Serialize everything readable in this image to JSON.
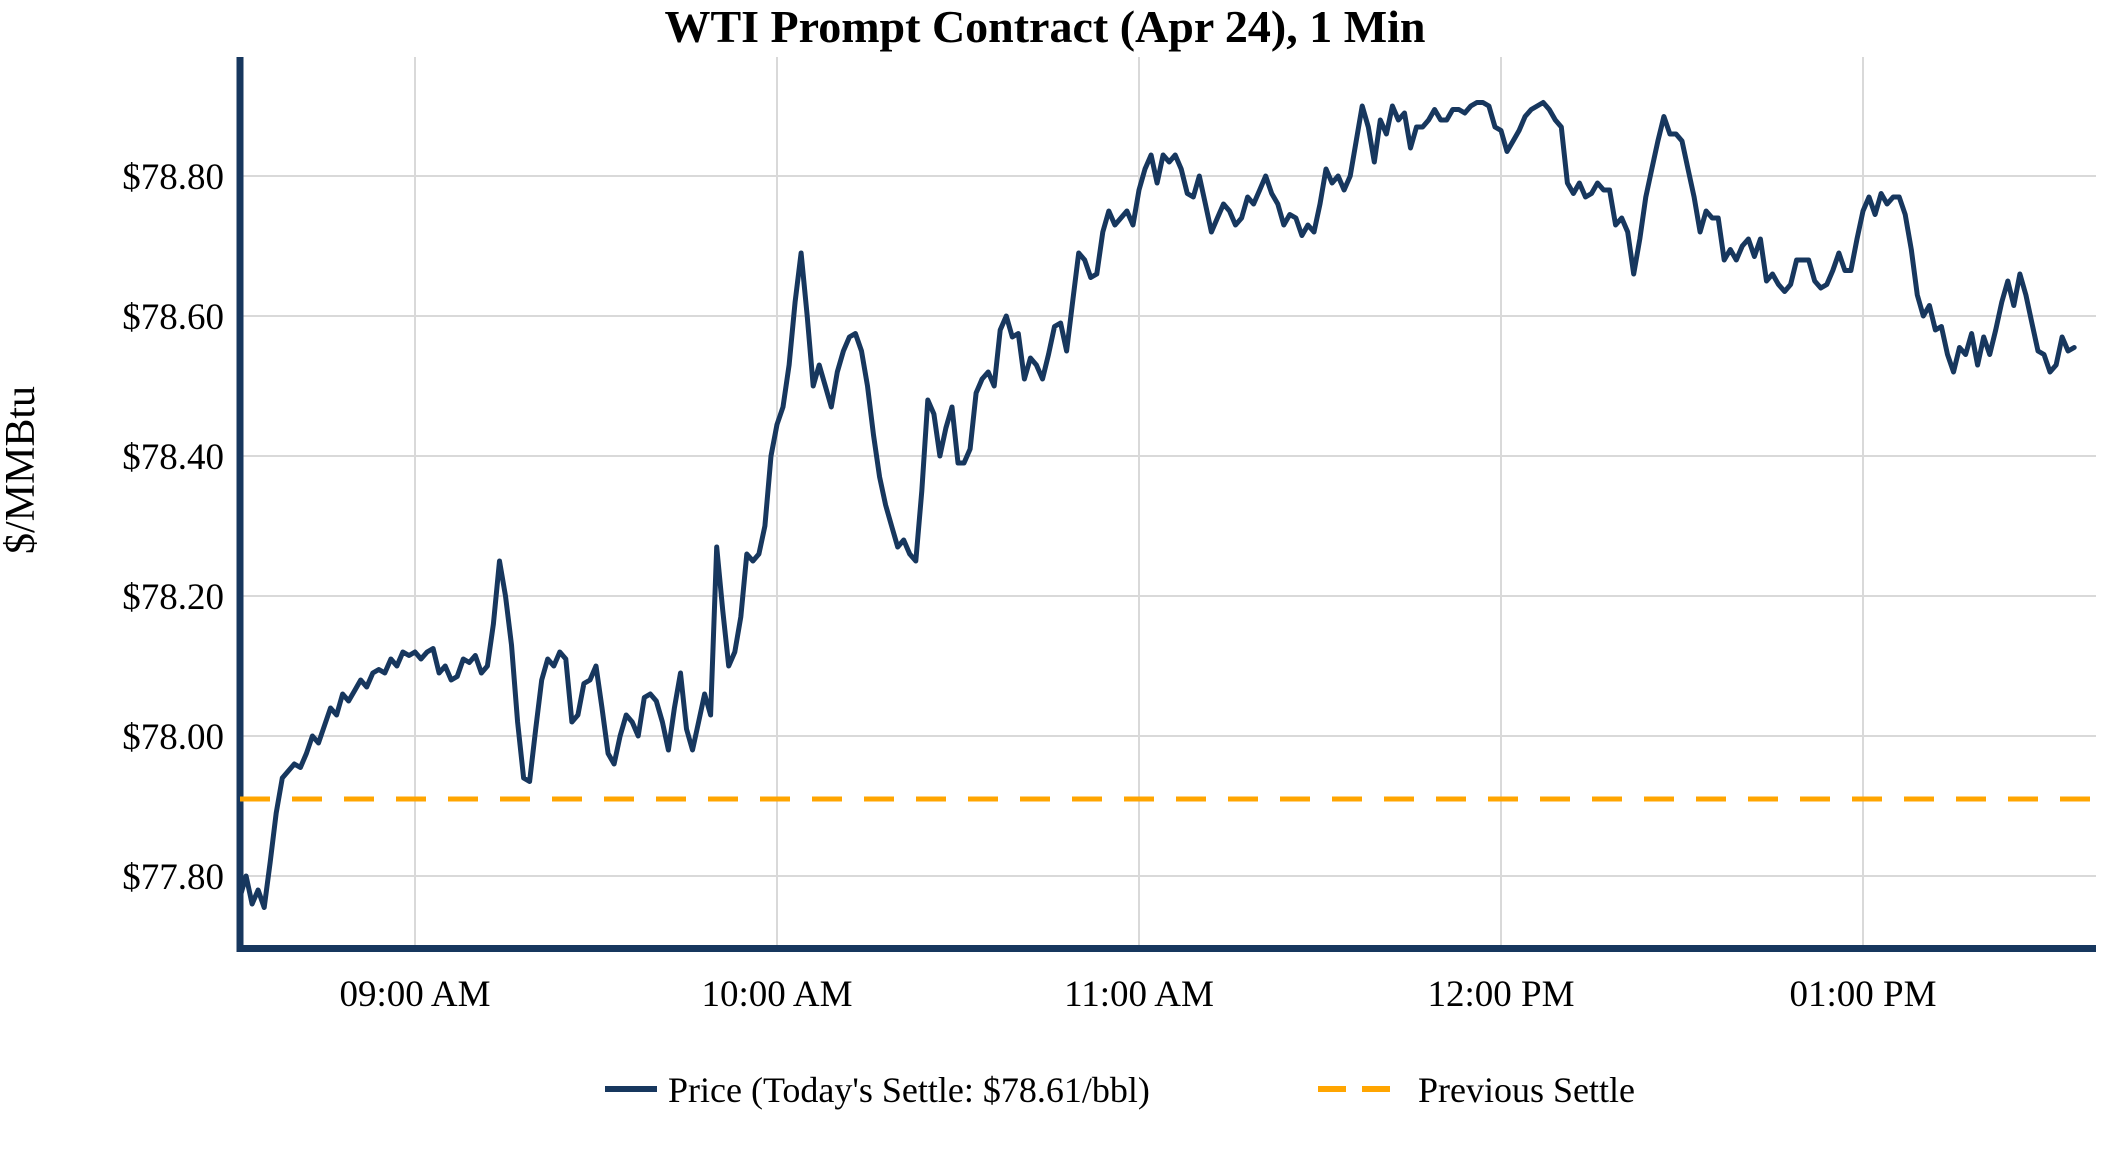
{
  "chart_data": {
    "type": "line",
    "title": "WTI Prompt Contract (Apr 24), 1 Min",
    "xlabel": "",
    "ylabel": "$/MMBtu",
    "ylim": [
      77.7,
      78.97
    ],
    "grid": true,
    "legend_position": "bottom",
    "grid_color": "#D9D9D9",
    "axis_color": "#17375E",
    "background_color": "#FFFFFF",
    "y_ticks": [
      {
        "label": "$78.80",
        "value": 78.8
      },
      {
        "label": "$78.60",
        "value": 78.6
      },
      {
        "label": "$78.40",
        "value": 78.4
      },
      {
        "label": "$78.20",
        "value": 78.2
      },
      {
        "label": "$78.00",
        "value": 78.0
      },
      {
        "label": "$77.80",
        "value": 77.8
      }
    ],
    "x_ticks": [
      {
        "label": "09:00 AM",
        "minutes": 540
      },
      {
        "label": "10:00 AM",
        "minutes": 600
      },
      {
        "label": "11:00 AM",
        "minutes": 660
      },
      {
        "label": "12:00 PM",
        "minutes": 720
      },
      {
        "label": "01:00 PM",
        "minutes": 780
      }
    ],
    "todays_settle": 78.61,
    "previous_settle": {
      "name": "Previous Settle",
      "value": 77.91,
      "color": "#FFA500",
      "style": "dashed"
    },
    "legend": {
      "price_label": "Price (Today's Settle: $78.61/bbl)",
      "settle_label": "Previous Settle"
    },
    "series": [
      {
        "name": "Price (Today's Settle: $78.61/bbl)",
        "color": "#17375E",
        "start_time": "08:31",
        "interval_minutes": 1,
        "unit": "$/MMBtu",
        "values": [
          77.77,
          77.8,
          77.76,
          77.78,
          77.755,
          77.82,
          77.89,
          77.94,
          77.95,
          77.96,
          77.955,
          77.975,
          78.0,
          77.99,
          78.015,
          78.04,
          78.03,
          78.06,
          78.05,
          78.065,
          78.08,
          78.07,
          78.09,
          78.095,
          78.09,
          78.11,
          78.1,
          78.12,
          78.115,
          78.12,
          78.11,
          78.12,
          78.125,
          78.09,
          78.1,
          78.08,
          78.085,
          78.11,
          78.105,
          78.115,
          78.09,
          78.1,
          78.16,
          78.25,
          78.2,
          78.13,
          78.02,
          77.94,
          77.935,
          78.01,
          78.08,
          78.11,
          78.1,
          78.12,
          78.11,
          78.02,
          78.03,
          78.075,
          78.08,
          78.1,
          78.04,
          77.975,
          77.96,
          78.0,
          78.03,
          78.02,
          78.0,
          78.055,
          78.06,
          78.05,
          78.02,
          77.98,
          78.04,
          78.09,
          78.01,
          77.98,
          78.02,
          78.06,
          78.03,
          78.27,
          78.18,
          78.1,
          78.12,
          78.17,
          78.26,
          78.25,
          78.26,
          78.3,
          78.4,
          78.445,
          78.47,
          78.53,
          78.62,
          78.69,
          78.6,
          78.5,
          78.53,
          78.5,
          78.47,
          78.52,
          78.55,
          78.57,
          78.575,
          78.55,
          78.5,
          78.43,
          78.37,
          78.33,
          78.3,
          78.27,
          78.28,
          78.26,
          78.25,
          78.35,
          78.48,
          78.46,
          78.4,
          78.44,
          78.47,
          78.39,
          78.39,
          78.41,
          78.49,
          78.51,
          78.52,
          78.5,
          78.58,
          78.6,
          78.57,
          78.575,
          78.51,
          78.54,
          78.53,
          78.51,
          78.545,
          78.585,
          78.59,
          78.55,
          78.62,
          78.69,
          78.68,
          78.655,
          78.66,
          78.72,
          78.75,
          78.73,
          78.74,
          78.75,
          78.73,
          78.78,
          78.81,
          78.83,
          78.79,
          78.83,
          78.82,
          78.83,
          78.81,
          78.775,
          78.77,
          78.8,
          78.76,
          78.72,
          78.74,
          78.76,
          78.75,
          78.73,
          78.74,
          78.77,
          78.76,
          78.78,
          78.8,
          78.775,
          78.76,
          78.73,
          78.745,
          78.74,
          78.715,
          78.73,
          78.72,
          78.76,
          78.81,
          78.79,
          78.8,
          78.78,
          78.8,
          78.85,
          78.9,
          78.87,
          78.82,
          78.88,
          78.86,
          78.9,
          78.88,
          78.89,
          78.84,
          78.87,
          78.87,
          78.88,
          78.895,
          78.88,
          78.88,
          78.895,
          78.895,
          78.89,
          78.9,
          78.905,
          78.905,
          78.9,
          78.87,
          78.865,
          78.835,
          78.85,
          78.865,
          78.885,
          78.895,
          78.9,
          78.905,
          78.895,
          78.88,
          78.87,
          78.79,
          78.775,
          78.79,
          78.77,
          78.775,
          78.79,
          78.78,
          78.78,
          78.73,
          78.74,
          78.72,
          78.66,
          78.71,
          78.77,
          78.81,
          78.85,
          78.885,
          78.86,
          78.86,
          78.85,
          78.81,
          78.77,
          78.72,
          78.75,
          78.74,
          78.74,
          78.68,
          78.695,
          78.68,
          78.7,
          78.71,
          78.685,
          78.71,
          78.65,
          78.66,
          78.645,
          78.635,
          78.645,
          78.68,
          78.68,
          78.68,
          78.65,
          78.64,
          78.645,
          78.665,
          78.69,
          78.665,
          78.665,
          78.71,
          78.75,
          78.77,
          78.745,
          78.775,
          78.76,
          78.77,
          78.77,
          78.745,
          78.695,
          78.63,
          78.6,
          78.615,
          78.58,
          78.585,
          78.545,
          78.52,
          78.555,
          78.545,
          78.575,
          78.53,
          78.57,
          78.545,
          78.58,
          78.62,
          78.65,
          78.615,
          78.66,
          78.63,
          78.59,
          78.55,
          78.545,
          78.52,
          78.53,
          78.57,
          78.55,
          78.555
        ]
      }
    ]
  }
}
